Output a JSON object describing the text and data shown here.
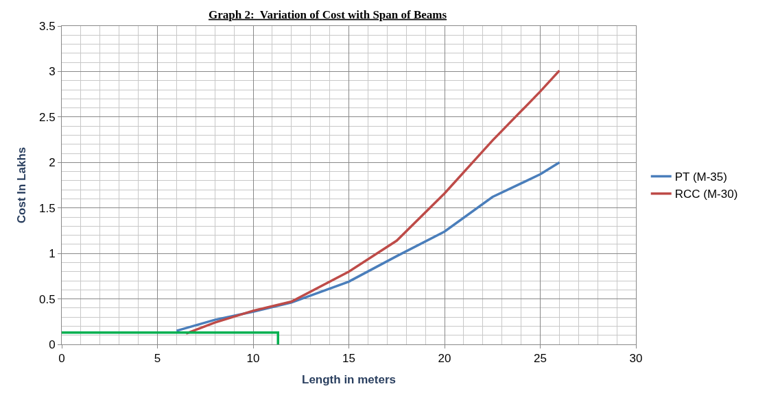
{
  "chart_data": {
    "type": "line",
    "title": "Graph 2:  Variation of Cost with Span of Beams",
    "xlabel": "Length in meters",
    "ylabel": "Cost In Lakhs",
    "xlim": [
      0,
      30
    ],
    "xticks": [
      0,
      5,
      10,
      15,
      20,
      25,
      30
    ],
    "ylim": [
      0,
      3.5
    ],
    "yticks": [
      0,
      0.5,
      1,
      1.5,
      2,
      2.5,
      3,
      3.5
    ],
    "grid": true,
    "legend": "right",
    "marker": "none",
    "line_style": "solid",
    "series": [
      {
        "name": "PT (M-35)",
        "color": "#4a7ebb",
        "x": [
          6,
          8,
          10,
          12,
          15,
          17.5,
          20,
          22.5,
          25,
          26
        ],
        "values": [
          0.15,
          0.27,
          0.36,
          0.46,
          0.69,
          0.97,
          1.24,
          1.62,
          1.87,
          2.0
        ]
      },
      {
        "name": "RCC (M-30)",
        "color": "#be4b48",
        "x": [
          6.5,
          8,
          10,
          12,
          15,
          17.5,
          20,
          22.5,
          25,
          26
        ],
        "values": [
          0.12,
          0.24,
          0.37,
          0.47,
          0.8,
          1.14,
          1.66,
          2.24,
          2.78,
          3.01
        ]
      },
      {
        "color": "#00b050",
        "x": [
          0,
          11.3,
          11.3
        ],
        "values": [
          0.13,
          0.13,
          0
        ]
      }
    ]
  }
}
